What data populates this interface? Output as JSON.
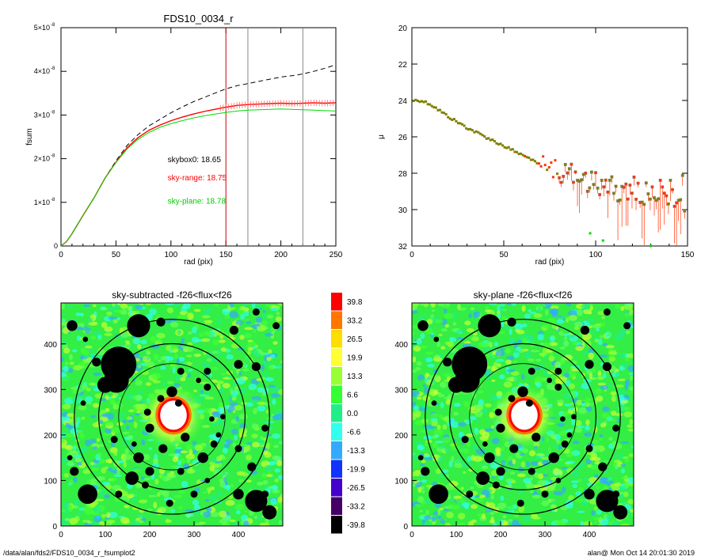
{
  "footer": {
    "path": "/data/alan/fds2/FDS10_0034_r_fsumplot2",
    "stamp": "alan@  Mon Oct 14 20:01:30 2019"
  },
  "chart_data": [
    {
      "id": "fsum",
      "type": "line",
      "title": "FDS10_0034_r",
      "xlabel": "rad (pix)",
      "ylabel": "fsum",
      "xlim": [
        0,
        250
      ],
      "ylim": [
        0,
        5e-08
      ],
      "xticks": [
        "0",
        "50",
        "100",
        "150",
        "200",
        "250"
      ],
      "yticks": [
        {
          "value": 0,
          "mant": "0",
          "exp": ""
        },
        {
          "value": 1e-08,
          "mant": "1×10",
          "exp": "-8"
        },
        {
          "value": 2e-08,
          "mant": "2×10",
          "exp": "-8"
        },
        {
          "value": 3e-08,
          "mant": "3×10",
          "exp": "-8"
        },
        {
          "value": 4e-08,
          "mant": "4×10",
          "exp": "-8"
        },
        {
          "value": 5e-08,
          "mant": "5×10",
          "exp": "-8"
        }
      ],
      "x": [
        0,
        5,
        10,
        20,
        30,
        40,
        50,
        60,
        70,
        80,
        90,
        100,
        110,
        120,
        130,
        140,
        150,
        160,
        170,
        180,
        190,
        200,
        210,
        220,
        230,
        240,
        250
      ],
      "series": [
        {
          "key": "dashed",
          "color": "#000000",
          "values": [
            0,
            1e-09,
            2.8e-09,
            7e-09,
            1.1e-08,
            1.55e-08,
            1.95e-08,
            2.3e-08,
            2.55e-08,
            2.75e-08,
            2.9e-08,
            3.05e-08,
            3.18e-08,
            3.3e-08,
            3.4e-08,
            3.5e-08,
            3.6e-08,
            3.67e-08,
            3.72e-08,
            3.77e-08,
            3.82e-08,
            3.87e-08,
            3.9e-08,
            3.94e-08,
            4e-08,
            4.07e-08,
            4.15e-08
          ]
        },
        {
          "key": "red",
          "color": "#ff0000",
          "values": [
            0,
            1e-09,
            2.8e-09,
            7e-09,
            1.1e-08,
            1.55e-08,
            1.92e-08,
            2.25e-08,
            2.48e-08,
            2.65e-08,
            2.77e-08,
            2.87e-08,
            2.95e-08,
            3.02e-08,
            3.08e-08,
            3.13e-08,
            3.18e-08,
            3.22e-08,
            3.24e-08,
            3.25e-08,
            3.26e-08,
            3.27e-08,
            3.26e-08,
            3.27e-08,
            3.28e-08,
            3.27e-08,
            3.28e-08
          ]
        },
        {
          "key": "green",
          "color": "#00dd00",
          "values": [
            0,
            1e-09,
            2.8e-09,
            7e-09,
            1.1e-08,
            1.55e-08,
            1.91e-08,
            2.22e-08,
            2.44e-08,
            2.6e-08,
            2.72e-08,
            2.8e-08,
            2.87e-08,
            2.93e-08,
            2.98e-08,
            3.02e-08,
            3.06e-08,
            3.09e-08,
            3.11e-08,
            3.12e-08,
            3.13e-08,
            3.14e-08,
            3.13e-08,
            3.12e-08,
            3.11e-08,
            3.1e-08,
            3.09e-08
          ]
        }
      ],
      "vlines": [
        {
          "x": 150,
          "color": "#cc0000"
        },
        {
          "x": 170,
          "color": "#888888"
        },
        {
          "x": 220,
          "color": "#888888"
        }
      ],
      "annotations": [
        {
          "text": "skybox0: 18.65",
          "color": "#000000",
          "x": 97,
          "y": 1.92e-08
        },
        {
          "text": "sky-range: 18.75",
          "color": "#ff0000",
          "x": 97,
          "y": 1.5e-08
        },
        {
          "text": "sky-plane: 18.78",
          "color": "#00cc00",
          "x": 97,
          "y": 9.7e-09
        }
      ],
      "grid": false
    },
    {
      "id": "mu",
      "type": "scatter",
      "title": "",
      "xlabel": "rad (pix)",
      "ylabel": "μ",
      "xlim": [
        0,
        150
      ],
      "ylim": [
        32,
        20
      ],
      "inverted_y": true,
      "xticks": [
        "0",
        "50",
        "100",
        "150"
      ],
      "yticks": [
        "20",
        "22",
        "24",
        "26",
        "28",
        "30",
        "32"
      ],
      "colors": {
        "profile": "#808000",
        "red": "#ff3300",
        "green": "#00dd00"
      },
      "profile": {
        "x": [
          0,
          5,
          10,
          20,
          30,
          40,
          50,
          60,
          70,
          80,
          90,
          100,
          110,
          120,
          130,
          140,
          150
        ],
        "y": [
          24.0,
          24.0,
          24.2,
          24.9,
          25.5,
          26.0,
          26.5,
          27.0,
          27.5,
          27.9,
          28.2,
          28.5,
          28.8,
          29.0,
          29.2,
          29.3,
          29.0
        ]
      },
      "outliers_green": [
        {
          "x": 97,
          "y": 31.3
        },
        {
          "x": 104,
          "y": 31.7
        },
        {
          "x": 130,
          "y": 32.0
        }
      ],
      "grid": false
    },
    {
      "id": "img-left",
      "type": "heatmap",
      "title": "sky-subtracted -f26<flux<f26",
      "xlim": [
        0,
        500
      ],
      "ylim": [
        0,
        490
      ],
      "xticks": [
        "0",
        "100",
        "200",
        "300",
        "400"
      ],
      "yticks": [
        "0",
        "100",
        "200",
        "300",
        "400"
      ],
      "center": [
        250,
        240
      ],
      "rings": [
        120,
        165,
        220
      ]
    },
    {
      "id": "img-right",
      "type": "heatmap",
      "title": "sky-plane -f26<flux<f26",
      "xlim": [
        0,
        500
      ],
      "ylim": [
        0,
        490
      ],
      "xticks": [
        "0",
        "100",
        "200",
        "300",
        "400"
      ],
      "yticks": [
        "0",
        "100",
        "200",
        "300",
        "400"
      ],
      "center": [
        250,
        240
      ],
      "rings": [
        120,
        165,
        220
      ]
    },
    {
      "id": "colorbar",
      "type": "legend",
      "levels": [
        {
          "label": "39.8",
          "color": "#ff0000"
        },
        {
          "label": "33.2",
          "color": "#ff7700"
        },
        {
          "label": "26.5",
          "color": "#ffdd00"
        },
        {
          "label": "19.9",
          "color": "#ffff33"
        },
        {
          "label": "13.3",
          "color": "#99ff33"
        },
        {
          "label": "6.6",
          "color": "#33ff33"
        },
        {
          "label": "0.0",
          "color": "#22ee88"
        },
        {
          "label": "-6.6",
          "color": "#33ffee"
        },
        {
          "label": "-13.3",
          "color": "#33aaff"
        },
        {
          "label": "-19.9",
          "color": "#1133ff"
        },
        {
          "label": "-26.5",
          "color": "#4400cc"
        },
        {
          "label": "-33.2",
          "color": "#440066"
        },
        {
          "label": "-39.8",
          "color": "#000000"
        }
      ]
    }
  ]
}
